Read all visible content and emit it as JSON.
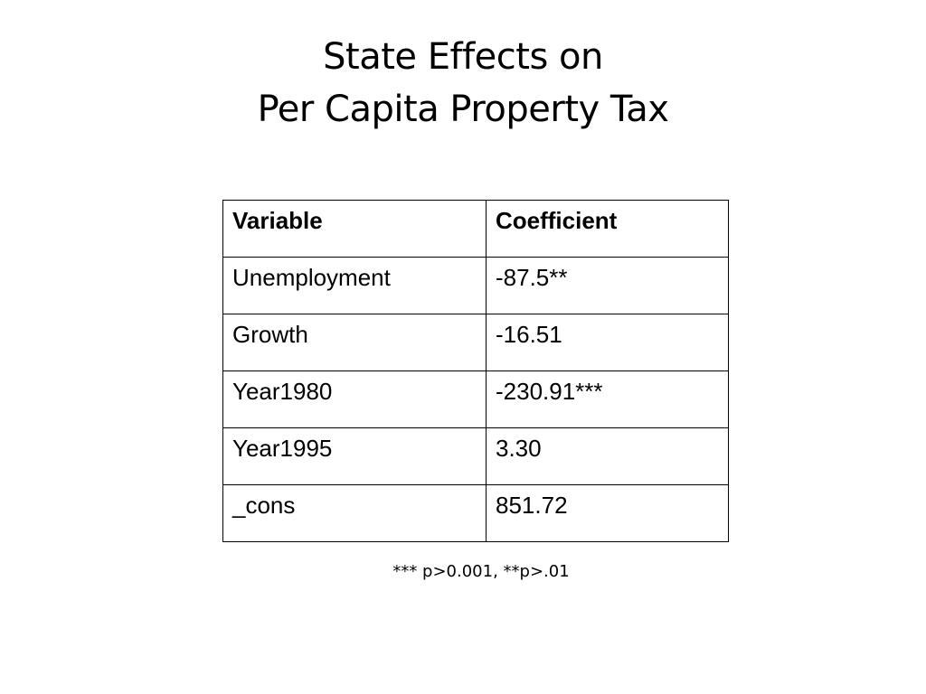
{
  "slide": {
    "title_line1": "State Effects on",
    "title_line2": "Per Capita Property Tax",
    "table": {
      "headers": [
        "Variable",
        "Coefficient"
      ],
      "rows": [
        [
          "Unemployment",
          "-87.5**"
        ],
        [
          "Growth",
          "-16.51"
        ],
        [
          "Year1980",
          "-230.91***"
        ],
        [
          "Year1995",
          "3.30"
        ],
        [
          "_cons",
          "851.72"
        ]
      ]
    },
    "footnote": "*** p>0.001, **p>.01"
  }
}
